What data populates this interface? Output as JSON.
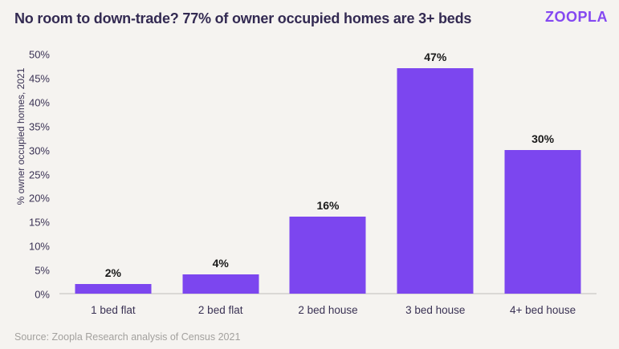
{
  "header": {
    "title": "No room to down-trade? 77% of owner occupied homes are 3+ beds",
    "logo_text": "ZOOPLA"
  },
  "chart_data": {
    "type": "bar",
    "title": "No room to down-trade? 77% of owner occupied homes are 3+ beds",
    "categories": [
      "1 bed flat",
      "2 bed flat",
      "2 bed house",
      "3 bed house",
      "4+ bed house"
    ],
    "values": [
      2,
      4,
      16,
      47,
      30
    ],
    "value_labels": [
      "2%",
      "4%",
      "16%",
      "47%",
      "30%"
    ],
    "xlabel": "",
    "ylabel": "% owner occupied homes, 2021",
    "ylim": [
      0,
      50
    ],
    "ytick_values": [
      0,
      5,
      10,
      15,
      20,
      25,
      30,
      35,
      40,
      45,
      50
    ],
    "ytick_labels": [
      "0%",
      "5%",
      "10%",
      "15%",
      "20%",
      "25%",
      "30%",
      "35%",
      "40%",
      "45%",
      "50%"
    ],
    "grid": false,
    "legend": false,
    "bar_color": "#7c46ef"
  },
  "footer": {
    "source": "Source: Zoopla Research analysis of Census 2021"
  },
  "colors": {
    "background": "#f5f3f0",
    "bar": "#7c46ef",
    "title_text": "#332a52",
    "axis_text": "#3a3254",
    "value_label_text": "#191919",
    "source_text": "#a3a19e",
    "logo": "#8448f1",
    "axis_line": "#dad8d5"
  }
}
